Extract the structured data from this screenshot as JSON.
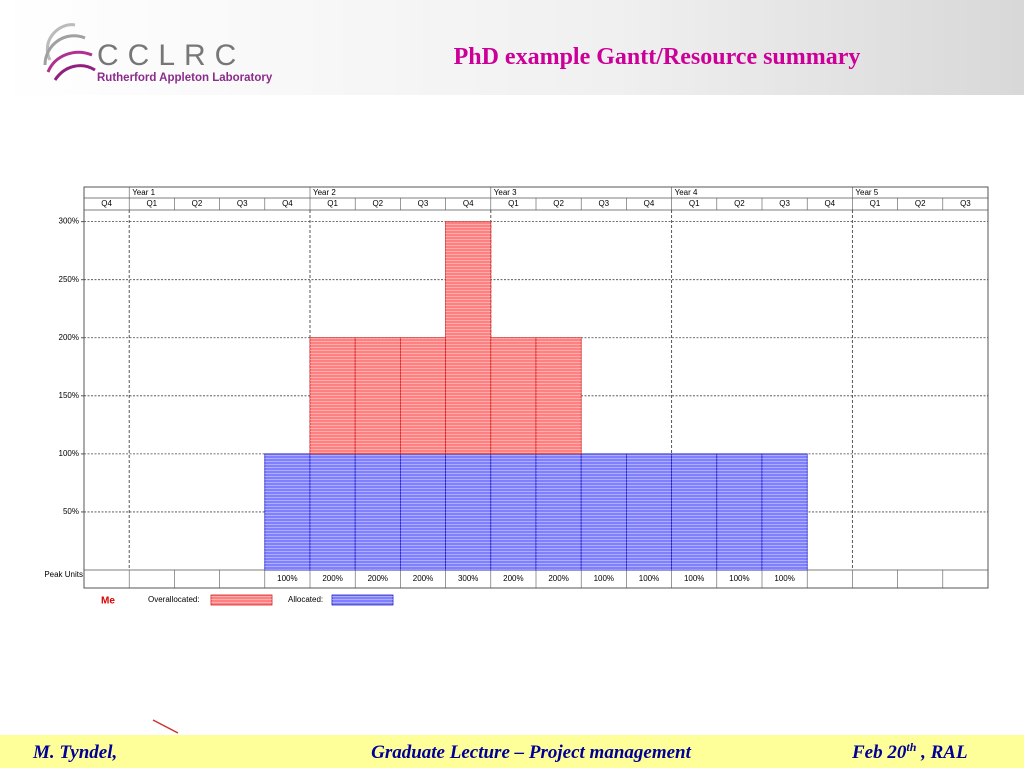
{
  "header": {
    "title": "PhD example Gantt/Resource summary",
    "logo": {
      "name": "CCLRC",
      "subtitle": "Rutherford Appleton Laboratory"
    }
  },
  "chart_data": {
    "type": "bar",
    "stacked": true,
    "resource": "Me",
    "years": [
      null,
      "Year 1",
      null,
      null,
      null,
      "Year 2",
      null,
      null,
      null,
      "Year 3",
      null,
      null,
      null,
      "Year 4",
      null,
      null,
      null,
      "Year 5",
      null,
      null
    ],
    "categories": [
      "Q4",
      "Q1",
      "Q2",
      "Q3",
      "Q4",
      "Q1",
      "Q2",
      "Q3",
      "Q4",
      "Q1",
      "Q2",
      "Q3",
      "Q4",
      "Q1",
      "Q2",
      "Q3",
      "Q4",
      "Q1",
      "Q2",
      "Q3"
    ],
    "series": [
      {
        "name": "Allocated:",
        "color": "#8080ff",
        "values": [
          null,
          null,
          null,
          null,
          100,
          100,
          100,
          100,
          100,
          100,
          100,
          100,
          100,
          100,
          100,
          100,
          null,
          null,
          null,
          null
        ]
      },
      {
        "name": "Overallocated:",
        "color": "#ff8080",
        "values": [
          null,
          null,
          null,
          null,
          null,
          100,
          100,
          100,
          200,
          100,
          100,
          null,
          null,
          null,
          null,
          null,
          null,
          null,
          null,
          null
        ]
      }
    ],
    "peak_units": {
      "label": "Peak Units",
      "values": [
        null,
        null,
        null,
        null,
        100,
        200,
        200,
        200,
        300,
        200,
        200,
        100,
        100,
        100,
        100,
        100,
        null,
        null,
        null,
        null
      ],
      "value_labels": [
        null,
        null,
        null,
        null,
        "100%",
        "200%",
        "200%",
        "200%",
        "300%",
        "200%",
        "200%",
        "100%",
        "100%",
        "100%",
        "100%",
        "100%",
        null,
        null,
        null,
        null
      ]
    },
    "ylim": [
      0,
      310
    ],
    "yticks": [
      {
        "value": 50,
        "label": "50%"
      },
      {
        "value": 100,
        "label": "100%"
      },
      {
        "value": 150,
        "label": "150%"
      },
      {
        "value": 200,
        "label": "200%"
      },
      {
        "value": 250,
        "label": "250%"
      },
      {
        "value": 300,
        "label": "300%"
      }
    ],
    "grid": true
  },
  "footer": {
    "author": "M. Tyndel,",
    "lecture": "Graduate Lecture – Project management",
    "date": {
      "text": "Feb 20",
      "superscript": "th",
      "suffix": " , RAL"
    }
  }
}
